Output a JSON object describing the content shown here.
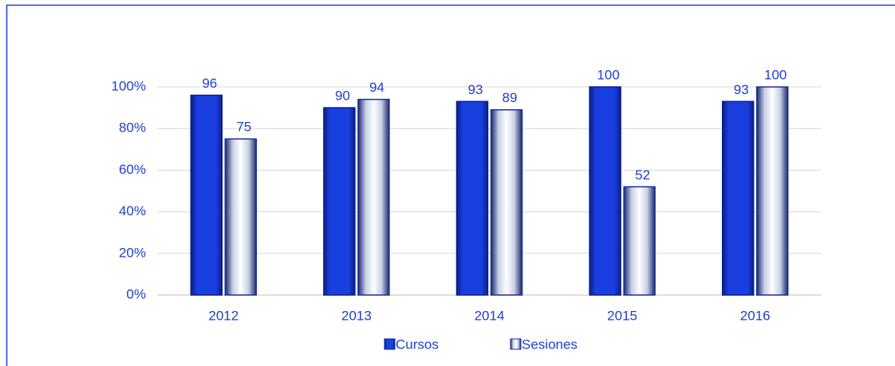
{
  "chart_data": {
    "type": "bar",
    "categories": [
      "2012",
      "2013",
      "2014",
      "2015",
      "2016"
    ],
    "series": [
      {
        "name": "Cursos",
        "color": "#1a3fe0",
        "values": [
          96,
          90,
          93,
          100,
          93
        ]
      },
      {
        "name": "Sesiones",
        "color": "#e8ecf8",
        "values": [
          75,
          94,
          89,
          52,
          100
        ]
      }
    ],
    "ylim": [
      0,
      100
    ],
    "yticks": [
      {
        "value": 0,
        "label": "0%"
      },
      {
        "value": 20,
        "label": "20%"
      },
      {
        "value": 40,
        "label": "40%"
      },
      {
        "value": 60,
        "label": "60%"
      },
      {
        "value": 80,
        "label": "80%"
      },
      {
        "value": 100,
        "label": "100%"
      }
    ],
    "grid": true,
    "legend": "bottom"
  }
}
